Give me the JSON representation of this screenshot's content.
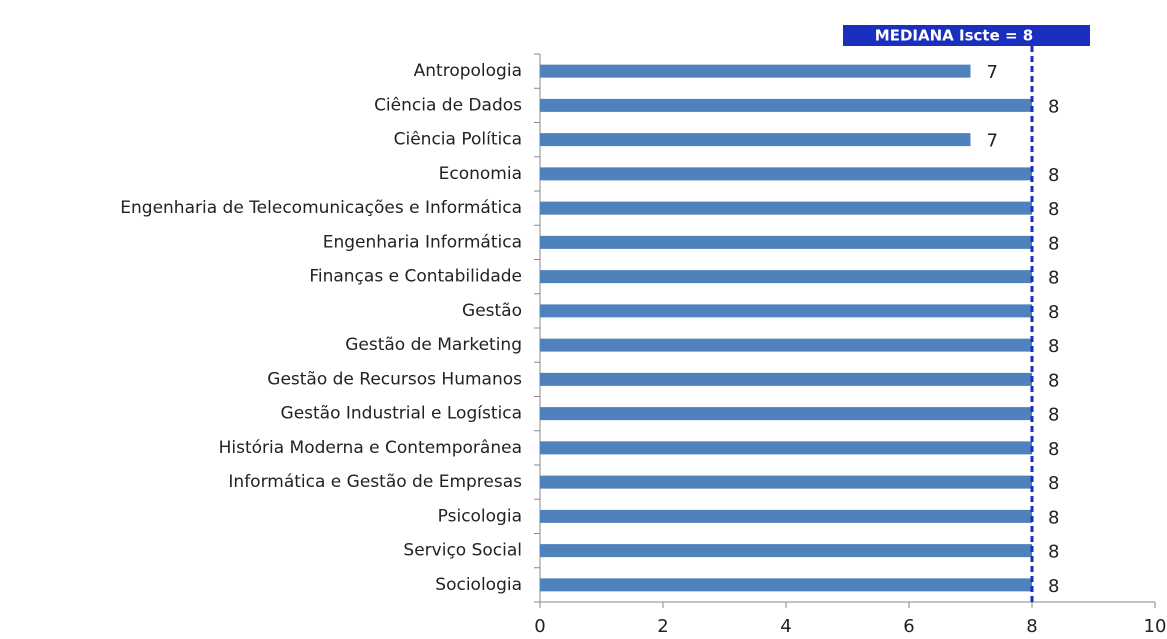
{
  "chart_data": {
    "type": "bar",
    "orientation": "horizontal",
    "categories": [
      "Antropologia",
      "Ciência de Dados",
      "Ciência Política",
      "Economia",
      "Engenharia de Telecomunicações e Informática",
      "Engenharia Informática",
      "Finanças e Contabilidade",
      "Gestão",
      "Gestão de Marketing",
      "Gestão de Recursos Humanos",
      "Gestão Industrial e Logística",
      "História Moderna e Contemporânea",
      "Informática e Gestão de Empresas",
      "Psicologia",
      "Serviço Social",
      "Sociologia"
    ],
    "values": [
      7,
      8,
      7,
      8,
      8,
      8,
      8,
      8,
      8,
      8,
      8,
      8,
      8,
      8,
      8,
      8
    ],
    "color": "#4f81bd",
    "xlim": [
      0,
      10
    ],
    "xticks": [
      0,
      2,
      4,
      6,
      8,
      10
    ],
    "reference_line": {
      "label": "MEDIANA Iscte = 8",
      "value": 8,
      "color": "#1a2fc0"
    }
  }
}
